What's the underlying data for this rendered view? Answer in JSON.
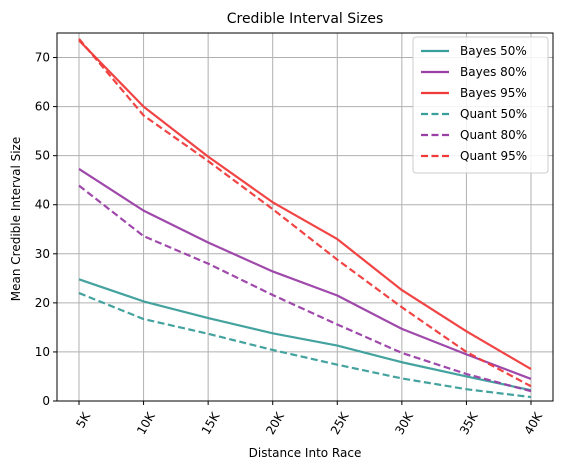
{
  "chart_data": {
    "type": "line",
    "title": "Credible Interval Sizes",
    "xlabel": "Distance Into Race",
    "ylabel": "Mean Credible Interval Size",
    "categories": [
      "5K",
      "10K",
      "15K",
      "20K",
      "25K",
      "30K",
      "35K",
      "40K"
    ],
    "ylim": [
      0,
      75
    ],
    "yticks": [
      0,
      10,
      20,
      30,
      40,
      50,
      60,
      70
    ],
    "grid": true,
    "legend_position": "top-right",
    "series": [
      {
        "name": "Bayes 50%",
        "color": "#3a9e9a",
        "dash": "solid",
        "values": [
          24.8,
          20.3,
          16.9,
          13.8,
          11.3,
          7.9,
          5.0,
          2.2
        ]
      },
      {
        "name": "Bayes 80%",
        "color": "#9a3fa6",
        "dash": "solid",
        "values": [
          47.3,
          38.8,
          32.3,
          26.4,
          21.5,
          14.7,
          9.5,
          4.5
        ]
      },
      {
        "name": "Bayes 95%",
        "color": "#f03a3a",
        "dash": "solid",
        "values": [
          73.5,
          60.0,
          49.8,
          40.5,
          33.0,
          22.6,
          14.2,
          6.5
        ]
      },
      {
        "name": "Quant 50%",
        "color": "#3a9e9a",
        "dash": "dashed",
        "values": [
          22.0,
          16.7,
          13.7,
          10.4,
          7.4,
          4.6,
          2.4,
          0.8
        ]
      },
      {
        "name": "Quant 80%",
        "color": "#9a3fa6",
        "dash": "dashed",
        "values": [
          43.9,
          33.6,
          28.0,
          21.6,
          15.6,
          9.8,
          5.5,
          2.0
        ]
      },
      {
        "name": "Quant 95%",
        "color": "#f03a3a",
        "dash": "dashed",
        "values": [
          73.8,
          58.2,
          48.9,
          39.1,
          28.8,
          19.1,
          10.0,
          3.0
        ]
      }
    ]
  }
}
